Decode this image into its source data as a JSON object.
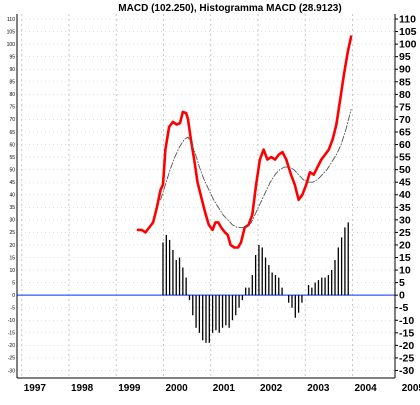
{
  "chart_data": {
    "type": "line",
    "title": "MACD (102.250), Histogramma MACD (28.9123)",
    "xlabel": "",
    "ylabel": "",
    "xlim": [
      1996.9,
      2004.9
    ],
    "ylim": [
      -33,
      112
    ],
    "grid": true,
    "x_ticks": [
      "1997",
      "1998",
      "1999",
      "2000",
      "2001",
      "2002",
      "2003",
      "2004",
      "2005"
    ],
    "x_tick_values": [
      1997,
      1998,
      1999,
      2000,
      2001,
      2002,
      2003,
      2004,
      2005
    ],
    "y_ticks_right": [
      110,
      105,
      100,
      95,
      90,
      85,
      80,
      75,
      70,
      65,
      60,
      55,
      50,
      45,
      40,
      35,
      30,
      25,
      20,
      15,
      10,
      5,
      0,
      -5,
      -10,
      -15,
      -20,
      -25,
      -30
    ],
    "y_ticks_left": [
      110,
      105,
      100,
      95,
      90,
      85,
      80,
      75,
      70,
      65,
      60,
      55,
      50,
      45,
      40,
      35,
      30,
      25,
      20,
      15,
      10,
      5,
      0,
      -5,
      -10,
      -15,
      -20,
      -25,
      -30
    ],
    "zero_line": 0,
    "series": [
      {
        "kind": "line",
        "color": "#ff0000",
        "style": "solid-thick",
        "points": [
          [
            1999.46,
            26
          ],
          [
            1999.54,
            26
          ],
          [
            1999.62,
            25
          ],
          [
            1999.7,
            27
          ],
          [
            1999.78,
            29
          ],
          [
            1999.86,
            35
          ],
          [
            1999.94,
            42
          ],
          [
            1999.99,
            44
          ],
          [
            2000.04,
            58
          ],
          [
            2000.12,
            67
          ],
          [
            2000.2,
            69
          ],
          [
            2000.28,
            68
          ],
          [
            2000.35,
            68.5
          ],
          [
            2000.41,
            73
          ],
          [
            2000.48,
            72.5
          ],
          [
            2000.52,
            70
          ],
          [
            2000.58,
            62
          ],
          [
            2000.65,
            54
          ],
          [
            2000.72,
            45
          ],
          [
            2000.8,
            39
          ],
          [
            2000.88,
            33
          ],
          [
            2000.96,
            28
          ],
          [
            2001.04,
            26
          ],
          [
            2001.1,
            29
          ],
          [
            2001.16,
            29
          ],
          [
            2001.22,
            27
          ],
          [
            2001.3,
            25
          ],
          [
            2001.36,
            24
          ],
          [
            2001.42,
            20
          ],
          [
            2001.5,
            19
          ],
          [
            2001.58,
            19
          ],
          [
            2001.64,
            21
          ],
          [
            2001.72,
            27
          ],
          [
            2001.8,
            28
          ],
          [
            2001.88,
            32
          ],
          [
            2001.96,
            44
          ],
          [
            2002.04,
            54
          ],
          [
            2002.12,
            58
          ],
          [
            2002.2,
            54
          ],
          [
            2002.28,
            55
          ],
          [
            2002.36,
            54
          ],
          [
            2002.44,
            56
          ],
          [
            2002.52,
            57
          ],
          [
            2002.6,
            54
          ],
          [
            2002.7,
            48
          ],
          [
            2002.78,
            44
          ],
          [
            2002.86,
            38
          ],
          [
            2002.94,
            40
          ],
          [
            2003.02,
            44
          ],
          [
            2003.1,
            49
          ],
          [
            2003.18,
            48
          ],
          [
            2003.26,
            51
          ],
          [
            2003.34,
            54
          ],
          [
            2003.42,
            56
          ],
          [
            2003.5,
            58
          ],
          [
            2003.58,
            62
          ],
          [
            2003.66,
            68
          ],
          [
            2003.74,
            78
          ],
          [
            2003.82,
            88
          ],
          [
            2003.9,
            97
          ],
          [
            2003.97,
            103
          ]
        ]
      },
      {
        "kind": "line",
        "color": "#555555",
        "style": "dash-dot",
        "points": [
          [
            1999.94,
            38
          ],
          [
            2000.04,
            44
          ],
          [
            2000.14,
            50
          ],
          [
            2000.24,
            55
          ],
          [
            2000.34,
            59
          ],
          [
            2000.44,
            62
          ],
          [
            2000.52,
            63
          ],
          [
            2000.6,
            60
          ],
          [
            2000.68,
            56
          ],
          [
            2000.76,
            51
          ],
          [
            2000.86,
            46
          ],
          [
            2000.96,
            42
          ],
          [
            2001.06,
            38
          ],
          [
            2001.16,
            35
          ],
          [
            2001.26,
            32
          ],
          [
            2001.36,
            30
          ],
          [
            2001.46,
            28
          ],
          [
            2001.56,
            27
          ],
          [
            2001.66,
            27
          ],
          [
            2001.76,
            27
          ],
          [
            2001.86,
            29
          ],
          [
            2001.96,
            33
          ],
          [
            2002.06,
            37
          ],
          [
            2002.16,
            41
          ],
          [
            2002.26,
            45
          ],
          [
            2002.36,
            48
          ],
          [
            2002.46,
            50
          ],
          [
            2002.56,
            51
          ],
          [
            2002.66,
            51
          ],
          [
            2002.76,
            50
          ],
          [
            2002.86,
            48
          ],
          [
            2002.96,
            46
          ],
          [
            2003.06,
            45
          ],
          [
            2003.16,
            45
          ],
          [
            2003.26,
            46
          ],
          [
            2003.36,
            48
          ],
          [
            2003.46,
            50
          ],
          [
            2003.56,
            53
          ],
          [
            2003.66,
            56
          ],
          [
            2003.76,
            60
          ],
          [
            2003.86,
            66
          ],
          [
            2003.97,
            74
          ]
        ]
      },
      {
        "kind": "histogram",
        "color": "#000000",
        "points": [
          [
            1999.99,
            21
          ],
          [
            2000.06,
            24
          ],
          [
            2000.13,
            22
          ],
          [
            2000.2,
            18
          ],
          [
            2000.27,
            14
          ],
          [
            2000.34,
            15
          ],
          [
            2000.41,
            11
          ],
          [
            2000.48,
            7
          ],
          [
            2000.55,
            -2
          ],
          [
            2000.62,
            -8
          ],
          [
            2000.69,
            -13
          ],
          [
            2000.76,
            -15
          ],
          [
            2000.83,
            -18
          ],
          [
            2000.9,
            -19
          ],
          [
            2000.97,
            -19
          ],
          [
            2001.04,
            -15
          ],
          [
            2001.11,
            -14
          ],
          [
            2001.18,
            -15
          ],
          [
            2001.25,
            -13
          ],
          [
            2001.32,
            -12
          ],
          [
            2001.39,
            -13
          ],
          [
            2001.46,
            -10
          ],
          [
            2001.53,
            -8
          ],
          [
            2001.6,
            -5
          ],
          [
            2001.67,
            -2
          ],
          [
            2001.74,
            3
          ],
          [
            2001.81,
            3
          ],
          [
            2001.88,
            8
          ],
          [
            2001.95,
            16
          ],
          [
            2002.02,
            20
          ],
          [
            2002.09,
            19
          ],
          [
            2002.16,
            15
          ],
          [
            2002.23,
            12
          ],
          [
            2002.3,
            9
          ],
          [
            2002.37,
            8
          ],
          [
            2002.44,
            7
          ],
          [
            2002.51,
            3
          ],
          [
            2002.58,
            0
          ],
          [
            2002.65,
            -3
          ],
          [
            2002.72,
            -5
          ],
          [
            2002.79,
            -9
          ],
          [
            2002.86,
            -7
          ],
          [
            2002.93,
            -3
          ],
          [
            2003.0,
            0
          ],
          [
            2003.07,
            4
          ],
          [
            2003.14,
            3
          ],
          [
            2003.21,
            5
          ],
          [
            2003.28,
            6
          ],
          [
            2003.35,
            7
          ],
          [
            2003.42,
            7
          ],
          [
            2003.49,
            8
          ],
          [
            2003.56,
            10
          ],
          [
            2003.63,
            14
          ],
          [
            2003.7,
            19
          ],
          [
            2003.77,
            23
          ],
          [
            2003.84,
            27
          ],
          [
            2003.91,
            29
          ]
        ]
      }
    ],
    "colors": {
      "background": "#ffffff",
      "grid": "#c8c8c8",
      "zero_line": "#3355ff",
      "axis": "#000000"
    }
  }
}
